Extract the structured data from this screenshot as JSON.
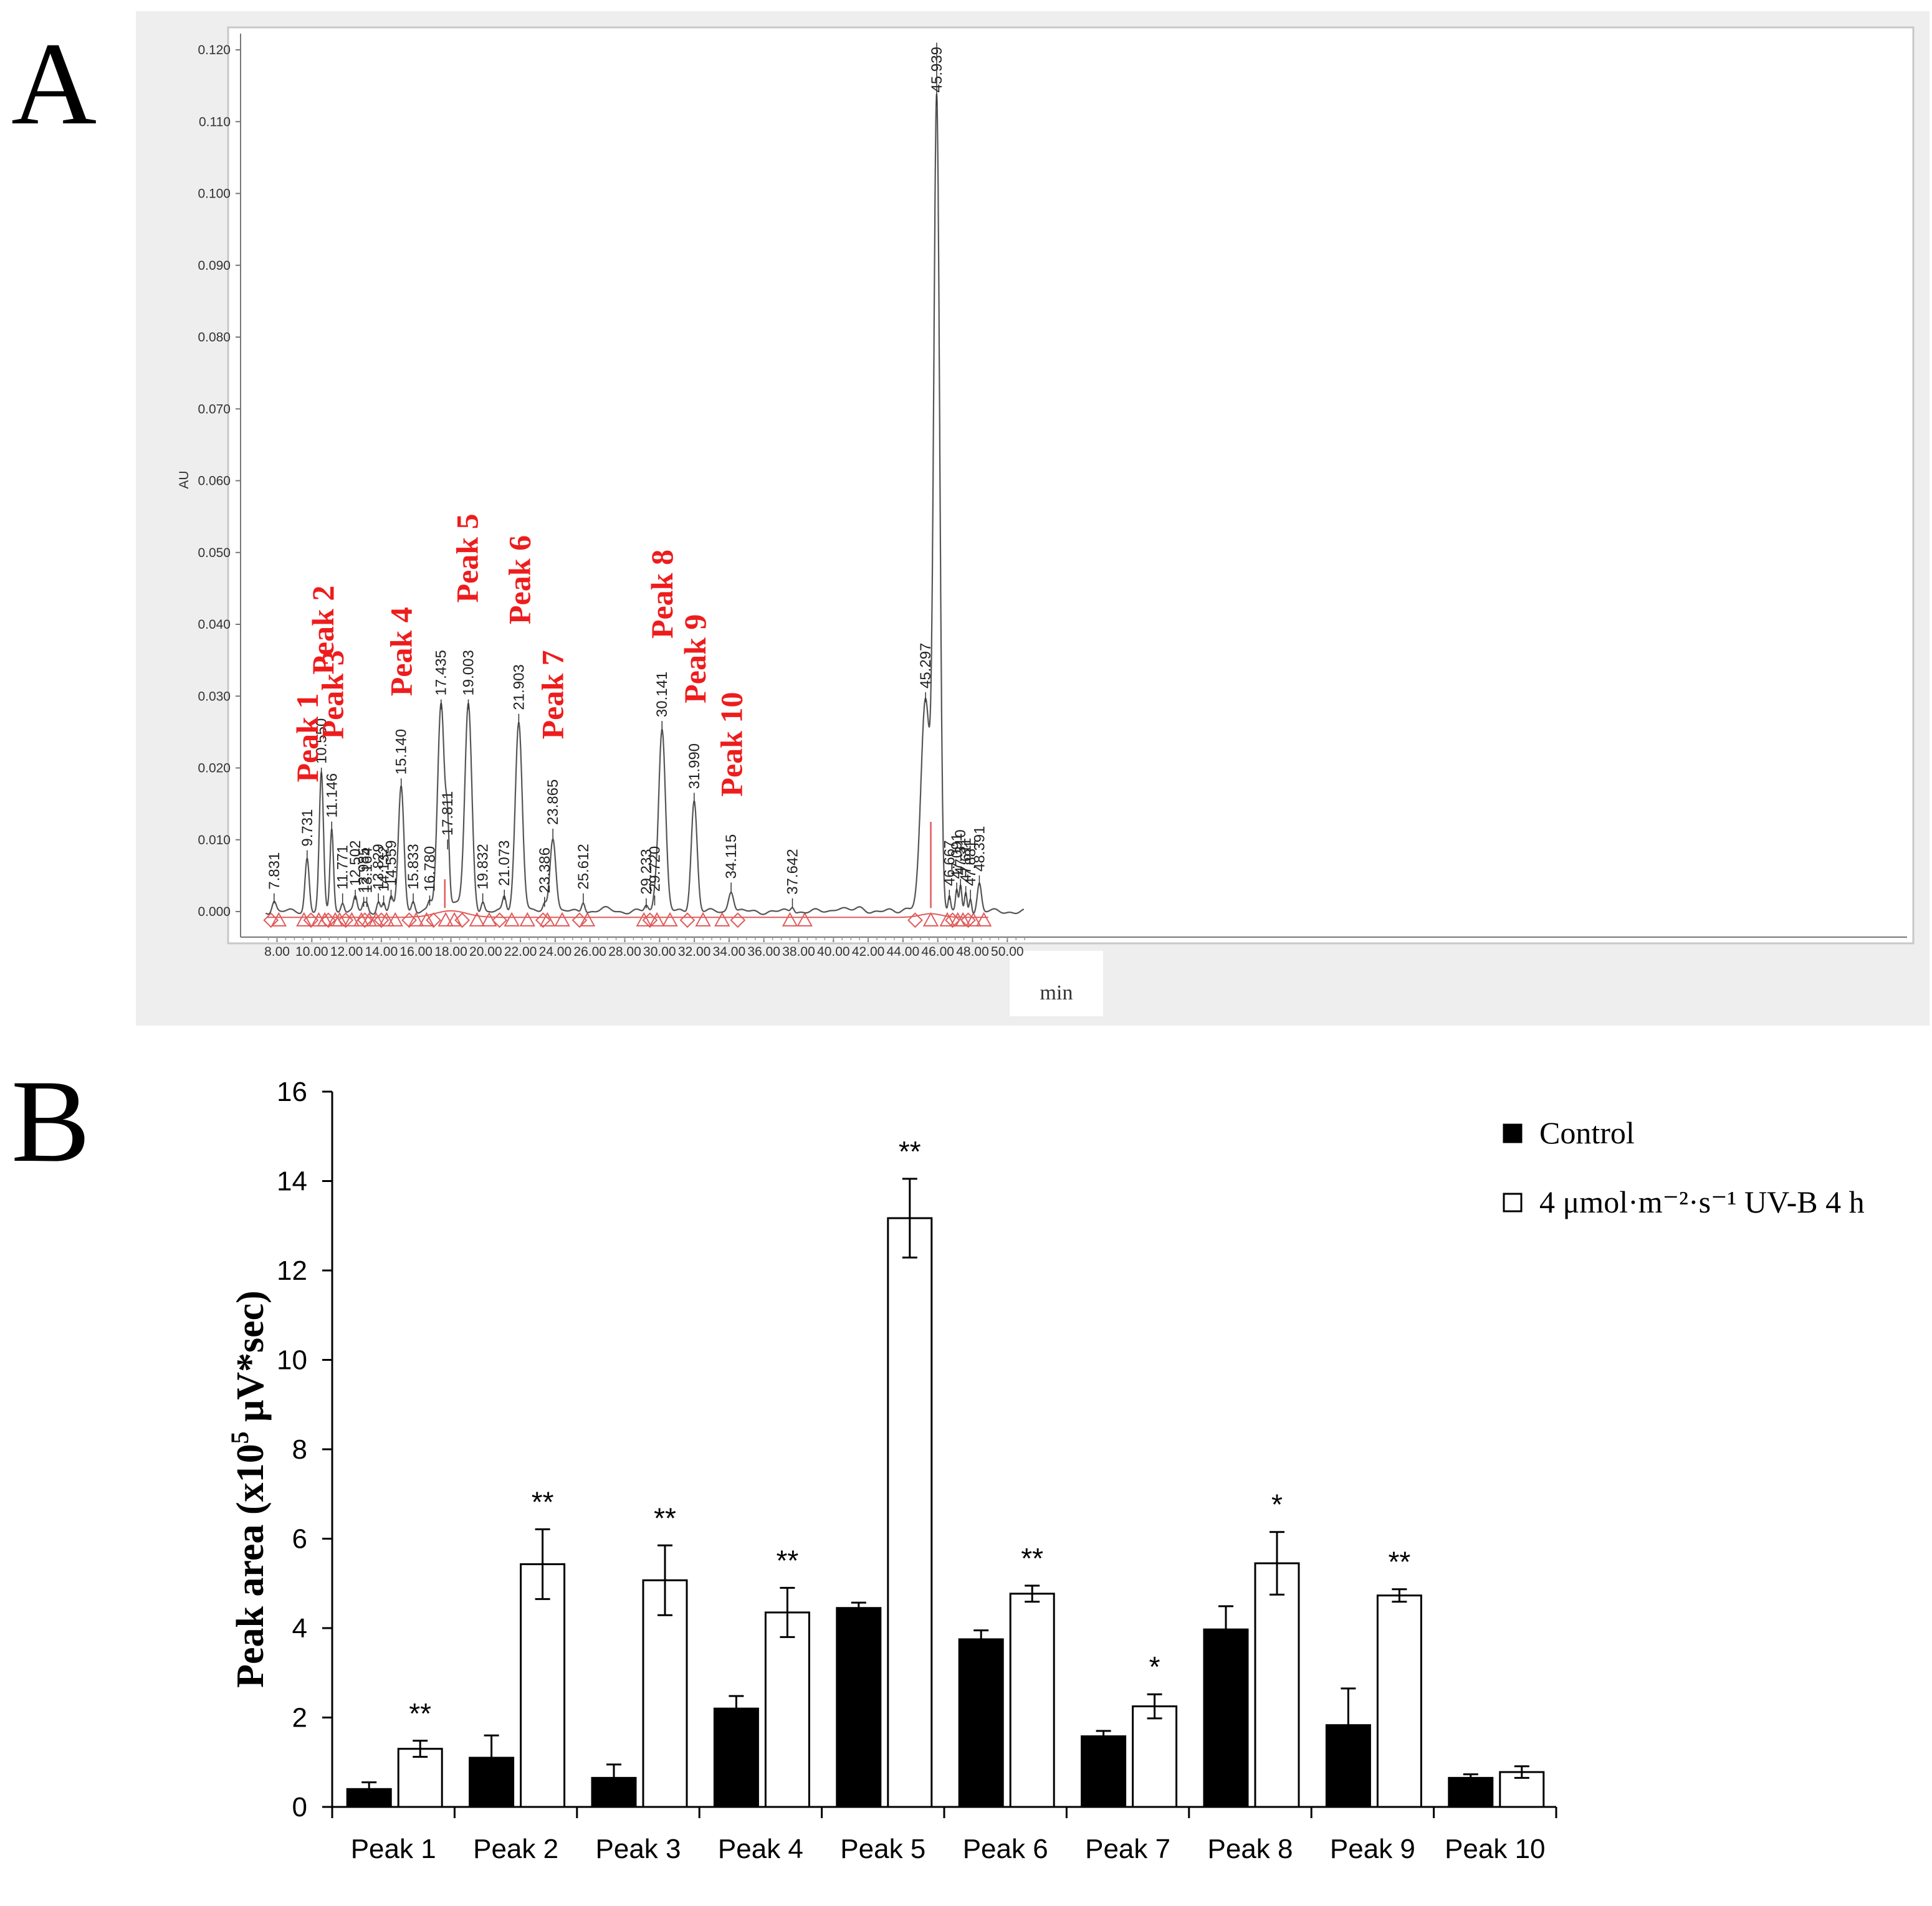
{
  "panels": {
    "a_letter": "A",
    "b_letter": "B"
  },
  "colors": {
    "trace": "#555555",
    "baseline": "#e05a5a",
    "peak_label": "#ee1c1c",
    "control": "#000000",
    "treated": "#ffffff"
  },
  "chart_data": [
    {
      "type": "line",
      "panel": "A",
      "xlabel": "min",
      "ylabel": "AU",
      "xlim": [
        7.3,
        51.0
      ],
      "ylim": [
        -0.003,
        0.122
      ],
      "x_ticks": [
        "8.00",
        "10.00",
        "12.00",
        "14.00",
        "16.00",
        "18.00",
        "20.00",
        "22.00",
        "24.00",
        "26.00",
        "28.00",
        "30.00",
        "32.00",
        "34.00",
        "36.00",
        "38.00",
        "40.00",
        "42.00",
        "44.00",
        "46.00",
        "48.00",
        "50.00"
      ],
      "y_ticks": [
        "0.000",
        "0.010",
        "0.020",
        "0.030",
        "0.040",
        "0.050",
        "0.060",
        "0.070",
        "0.080",
        "0.090",
        "0.100",
        "0.110",
        "0.120"
      ],
      "peaks": [
        {
          "rt": 7.831,
          "height": 0.0015,
          "width": 0.12,
          "label": "7.831"
        },
        {
          "rt": 9.731,
          "height": 0.0075,
          "width": 0.12,
          "label": "9.731"
        },
        {
          "rt": 10.55,
          "height": 0.019,
          "width": 0.12,
          "label": "10.550"
        },
        {
          "rt": 11.146,
          "height": 0.0115,
          "width": 0.1,
          "label": "11.146"
        },
        {
          "rt": 11.771,
          "height": 0.0015,
          "width": 0.1,
          "label": "11.771"
        },
        {
          "rt": 12.502,
          "height": 0.002,
          "width": 0.1,
          "label": "12.502"
        },
        {
          "rt": 12.985,
          "height": 0.001,
          "width": 0.08,
          "label": "12.985"
        },
        {
          "rt": 13.164,
          "height": 0.001,
          "width": 0.08,
          "label": "13.164"
        },
        {
          "rt": 13.829,
          "height": 0.0015,
          "width": 0.1,
          "label": "13.829"
        },
        {
          "rt": 14.132,
          "height": 0.0012,
          "width": 0.08,
          "label": "14.132"
        },
        {
          "rt": 14.559,
          "height": 0.002,
          "width": 0.1,
          "label": "14.559"
        },
        {
          "rt": 15.14,
          "height": 0.0175,
          "width": 0.16,
          "label": "15.140"
        },
        {
          "rt": 15.833,
          "height": 0.0015,
          "width": 0.1,
          "label": "15.833"
        },
        {
          "rt": 16.78,
          "height": 0.0012,
          "width": 0.1,
          "label": "16.780"
        },
        {
          "rt": 17.435,
          "height": 0.0285,
          "width": 0.2,
          "label": "17.435"
        },
        {
          "rt": 17.811,
          "height": 0.009,
          "width": 0.1,
          "label": "17.811"
        },
        {
          "rt": 19.003,
          "height": 0.0285,
          "width": 0.2,
          "label": "19.003"
        },
        {
          "rt": 19.832,
          "height": 0.0015,
          "width": 0.1,
          "label": "19.832"
        },
        {
          "rt": 21.073,
          "height": 0.002,
          "width": 0.1,
          "label": "21.073"
        },
        {
          "rt": 21.903,
          "height": 0.0265,
          "width": 0.2,
          "label": "21.903"
        },
        {
          "rt": 23.386,
          "height": 0.001,
          "width": 0.1,
          "label": "23.386"
        },
        {
          "rt": 23.865,
          "height": 0.0105,
          "width": 0.17,
          "label": "23.865"
        },
        {
          "rt": 25.612,
          "height": 0.0015,
          "width": 0.1,
          "label": "25.612"
        },
        {
          "rt": 29.233,
          "height": 0.0008,
          "width": 0.1,
          "label": "29.233"
        },
        {
          "rt": 29.72,
          "height": 0.0012,
          "width": 0.1,
          "label": "29.720"
        },
        {
          "rt": 30.141,
          "height": 0.0255,
          "width": 0.2,
          "label": "30.141"
        },
        {
          "rt": 31.99,
          "height": 0.0155,
          "width": 0.17,
          "label": "31.990"
        },
        {
          "rt": 34.115,
          "height": 0.003,
          "width": 0.15,
          "label": "34.115"
        },
        {
          "rt": 37.642,
          "height": 0.0008,
          "width": 0.1,
          "label": "37.642"
        },
        {
          "rt": 45.297,
          "height": 0.0295,
          "width": 0.26,
          "label": "45.297"
        },
        {
          "rt": 45.939,
          "height": 0.1125,
          "width": 0.17,
          "label": "45.939"
        },
        {
          "rt": 46.667,
          "height": 0.002,
          "width": 0.07,
          "label": "46.667"
        },
        {
          "rt": 47.091,
          "height": 0.003,
          "width": 0.07,
          "label": "47.091"
        },
        {
          "rt": 47.31,
          "height": 0.0035,
          "width": 0.07,
          "label": "47.310"
        },
        {
          "rt": 47.611,
          "height": 0.0025,
          "width": 0.07,
          "label": "47.611"
        },
        {
          "rt": 47.881,
          "height": 0.002,
          "width": 0.07,
          "label": "47.881"
        },
        {
          "rt": 48.391,
          "height": 0.004,
          "width": 0.12,
          "label": "48.391"
        }
      ],
      "annotations": [
        {
          "text": "Peak 1",
          "x": 9.7,
          "y": 0.018
        },
        {
          "text": "Peak 2",
          "x": 10.6,
          "y": 0.033
        },
        {
          "text": "Peak 3",
          "x": 11.15,
          "y": 0.024
        },
        {
          "text": "Peak 4",
          "x": 15.1,
          "y": 0.03
        },
        {
          "text": "Peak 5",
          "x": 18.9,
          "y": 0.043
        },
        {
          "text": "Peak 6",
          "x": 21.9,
          "y": 0.04
        },
        {
          "text": "Peak 7",
          "x": 23.8,
          "y": 0.024
        },
        {
          "text": "Peak 8",
          "x": 30.1,
          "y": 0.038
        },
        {
          "text": "Peak 9",
          "x": 32.0,
          "y": 0.029
        },
        {
          "text": "Peak 10",
          "x": 34.1,
          "y": 0.016
        }
      ]
    },
    {
      "type": "bar",
      "panel": "B",
      "ylabel_main": "Peak area (x10",
      "ylabel_sup": "5",
      "ylabel_tail": " μV*sec)",
      "ylim": [
        0,
        16
      ],
      "y_ticks": [
        "0",
        "2",
        "4",
        "6",
        "8",
        "10",
        "12",
        "14",
        "16"
      ],
      "categories": [
        "Peak 1",
        "Peak 2",
        "Peak 3",
        "Peak 4",
        "Peak 5",
        "Peak 6",
        "Peak 7",
        "Peak 8",
        "Peak 9",
        "Peak 10"
      ],
      "series": [
        {
          "name": "Control",
          "values": [
            0.4,
            1.1,
            0.65,
            2.2,
            4.45,
            3.75,
            1.58,
            3.97,
            1.83,
            0.65
          ],
          "errors": [
            0.15,
            0.5,
            0.3,
            0.28,
            0.12,
            0.2,
            0.12,
            0.52,
            0.82,
            0.08
          ]
        },
        {
          "name": "4 μmol·m⁻²·s⁻¹ UV-B 4 h",
          "values": [
            1.3,
            5.43,
            5.07,
            4.35,
            13.17,
            4.77,
            2.25,
            5.45,
            4.73,
            0.78
          ],
          "errors": [
            0.18,
            0.78,
            0.78,
            0.55,
            0.88,
            0.18,
            0.27,
            0.7,
            0.14,
            0.13
          ]
        }
      ],
      "significance": [
        "**",
        "**",
        "**",
        "**",
        "**",
        "**",
        "*",
        "*",
        "**",
        ""
      ],
      "legend": {
        "position": "top-right"
      }
    }
  ]
}
